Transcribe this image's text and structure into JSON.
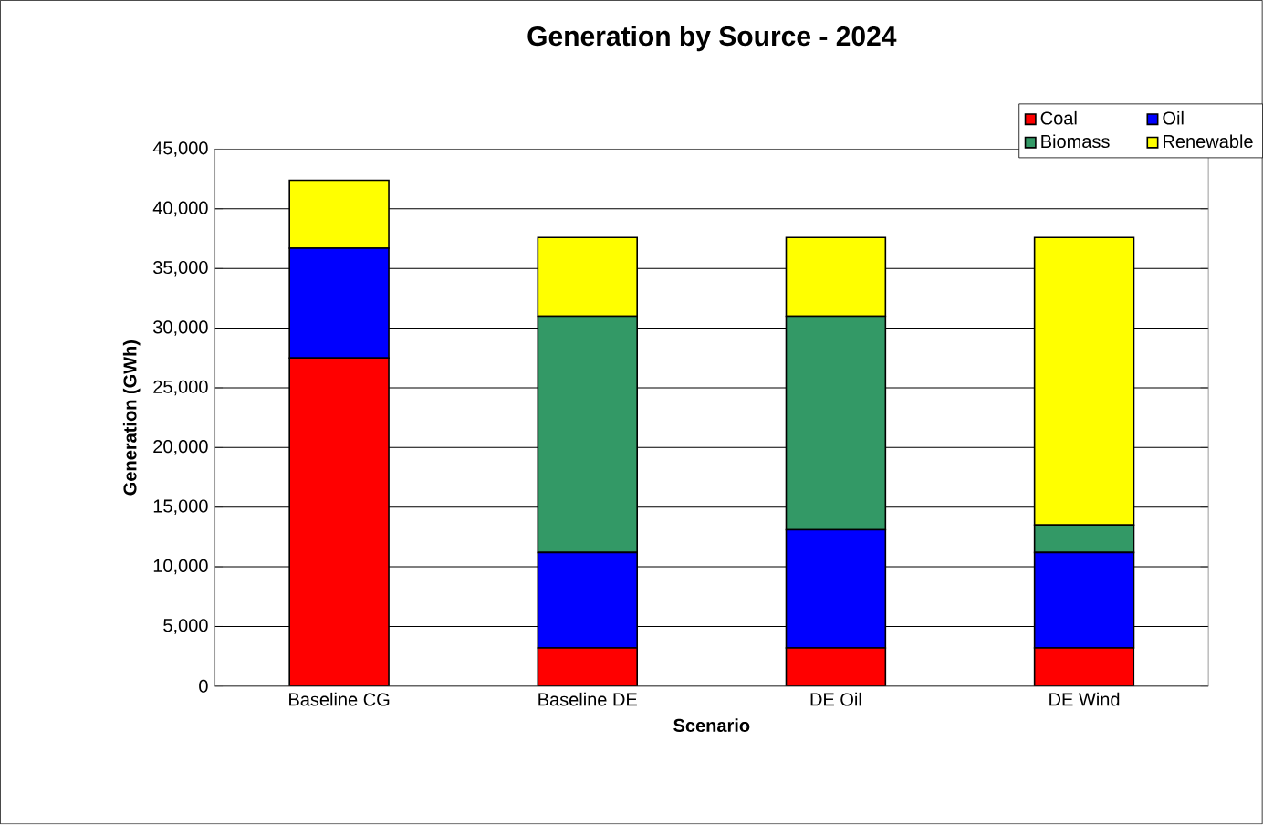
{
  "chart_data": {
    "type": "bar",
    "stacked": true,
    "title": "Generation by Source - 2024",
    "xlabel": "Scenario",
    "ylabel": "Generation (GWh)",
    "categories": [
      "Baseline CG",
      "Baseline DE",
      "DE Oil",
      "DE Wind"
    ],
    "series": [
      {
        "name": "Coal",
        "color": "#ff0000",
        "values": [
          27500,
          3200,
          3200,
          3200
        ]
      },
      {
        "name": "Oil",
        "color": "#0000ff",
        "values": [
          9200,
          8000,
          9900,
          8000
        ]
      },
      {
        "name": "Biomass",
        "color": "#339966",
        "values": [
          0,
          19800,
          17900,
          2300
        ]
      },
      {
        "name": "Renewable",
        "color": "#ffff00",
        "values": [
          5700,
          6600,
          6600,
          24100
        ]
      }
    ],
    "ylim": [
      0,
      45000
    ],
    "yticks": [
      {
        "value": 0,
        "label": "0"
      },
      {
        "value": 5000,
        "label": "5,000"
      },
      {
        "value": 10000,
        "label": "10,000"
      },
      {
        "value": 15000,
        "label": "15,000"
      },
      {
        "value": 20000,
        "label": "20,000"
      },
      {
        "value": 25000,
        "label": "25,000"
      },
      {
        "value": 30000,
        "label": "30,000"
      },
      {
        "value": 35000,
        "label": "35,000"
      },
      {
        "value": 40000,
        "label": "40,000"
      },
      {
        "value": 45000,
        "label": "45,000"
      }
    ],
    "grid": "y",
    "legend": "top right"
  }
}
